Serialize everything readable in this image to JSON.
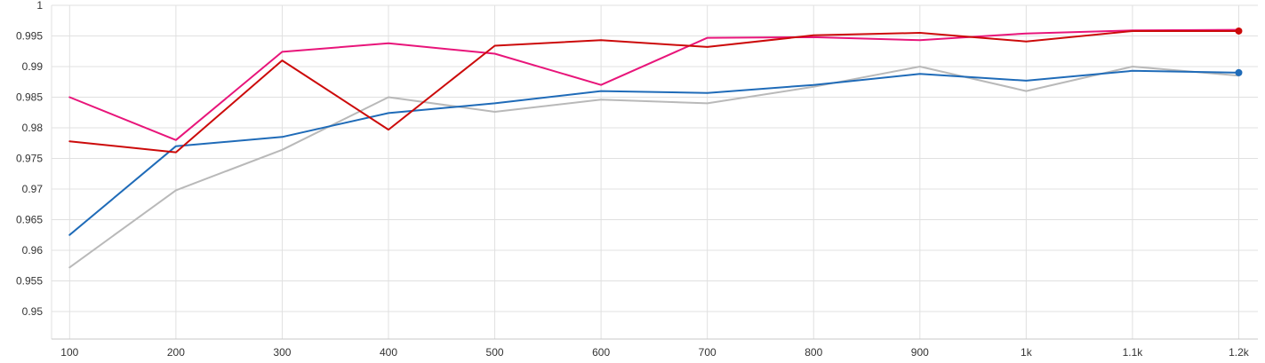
{
  "chart_data": {
    "type": "line",
    "title": "",
    "xlabel": "",
    "ylabel": "",
    "x": [
      100,
      200,
      300,
      400,
      500,
      600,
      700,
      800,
      900,
      1000,
      1100,
      1200
    ],
    "x_tick_labels": [
      "100",
      "200",
      "300",
      "400",
      "500",
      "600",
      "700",
      "800",
      "900",
      "1k",
      "1.1k",
      "1.2k"
    ],
    "y_ticks": [
      0.95,
      0.955,
      0.96,
      0.965,
      0.97,
      0.975,
      0.98,
      0.985,
      0.99,
      0.995,
      1
    ],
    "y_tick_labels": [
      "0.95",
      "0.955",
      "0.96",
      "0.965",
      "0.97",
      "0.975",
      "0.98",
      "0.985",
      "0.99",
      "0.995",
      "1"
    ],
    "xlim": [
      83,
      1218
    ],
    "ylim": [
      0.9455,
      1.0
    ],
    "grid": true,
    "series": [
      {
        "color": "#b9b9b9",
        "values": [
          0.9572,
          0.9698,
          0.9764,
          0.985,
          0.9826,
          0.9846,
          0.984,
          0.9867,
          0.99,
          0.986,
          0.99,
          0.9885
        ]
      },
      {
        "color": "#1f6bb8",
        "values": [
          0.9625,
          0.977,
          0.9785,
          0.9824,
          0.984,
          0.986,
          0.9857,
          0.987,
          0.9888,
          0.9877,
          0.9893,
          0.989
        ],
        "end_marker": true
      },
      {
        "color": "#e8157a",
        "values": [
          0.985,
          0.978,
          0.9924,
          0.9938,
          0.9921,
          0.987,
          0.9947,
          0.9948,
          0.9943,
          0.9954,
          0.9959,
          0.996
        ]
      },
      {
        "color": "#cc0a0a",
        "values": [
          0.9778,
          0.976,
          0.991,
          0.9797,
          0.9934,
          0.9943,
          0.9932,
          0.9951,
          0.9955,
          0.9941,
          0.9958,
          0.9958
        ],
        "end_marker": true
      }
    ]
  }
}
